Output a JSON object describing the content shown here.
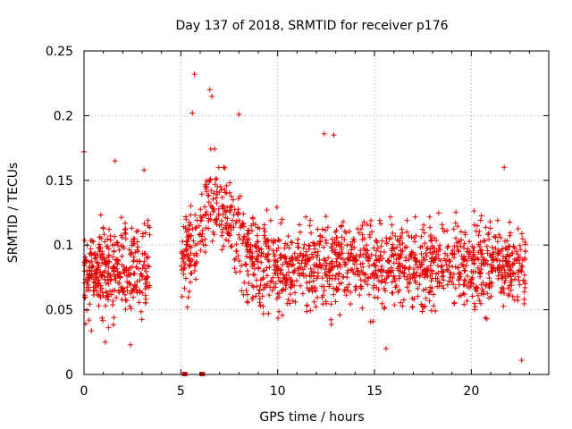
{
  "chart_data": {
    "type": "scatter",
    "title": "Day 137 of 2018, SRMTID for receiver p176",
    "xlabel": "GPS time / hours",
    "ylabel": "SRMTID / TECUs",
    "xlim": [
      0,
      24
    ],
    "ylim": [
      0,
      0.25
    ],
    "xticks": [
      0,
      5,
      10,
      15,
      20
    ],
    "yticks": [
      0,
      0.05,
      0.1,
      0.15,
      0.2,
      0.25
    ],
    "xtick_labels": [
      "0",
      "5",
      "10",
      "15",
      "20"
    ],
    "ytick_labels": [
      "0",
      "0.05",
      "0.1",
      "0.15",
      "0.2",
      "0.25"
    ],
    "grid": true,
    "marker": "+",
    "color": "#e00000",
    "segments": [
      {
        "x_start": 0.0,
        "x_end": 3.4,
        "mean": 0.08,
        "spread": 0.03,
        "count": 360
      },
      {
        "x_start": 5.0,
        "x_end": 22.8,
        "mean": 0.085,
        "spread": 0.03,
        "count": 1500
      }
    ],
    "zero_markers": [
      5.2,
      6.1
    ],
    "highlights": [
      {
        "x": 5.7,
        "y": 0.232
      },
      {
        "x": 6.5,
        "y": 0.22
      },
      {
        "x": 6.6,
        "y": 0.215
      },
      {
        "x": 8.0,
        "y": 0.201
      },
      {
        "x": 5.6,
        "y": 0.202
      },
      {
        "x": 0.0,
        "y": 0.172
      },
      {
        "x": 12.4,
        "y": 0.186
      },
      {
        "x": 12.9,
        "y": 0.185
      },
      {
        "x": 1.6,
        "y": 0.165
      },
      {
        "x": 3.1,
        "y": 0.158
      },
      {
        "x": 21.7,
        "y": 0.16
      },
      {
        "x": 22.6,
        "y": 0.011
      },
      {
        "x": 15.6,
        "y": 0.02
      },
      {
        "x": 1.1,
        "y": 0.025
      },
      {
        "x": 2.4,
        "y": 0.023
      }
    ]
  }
}
